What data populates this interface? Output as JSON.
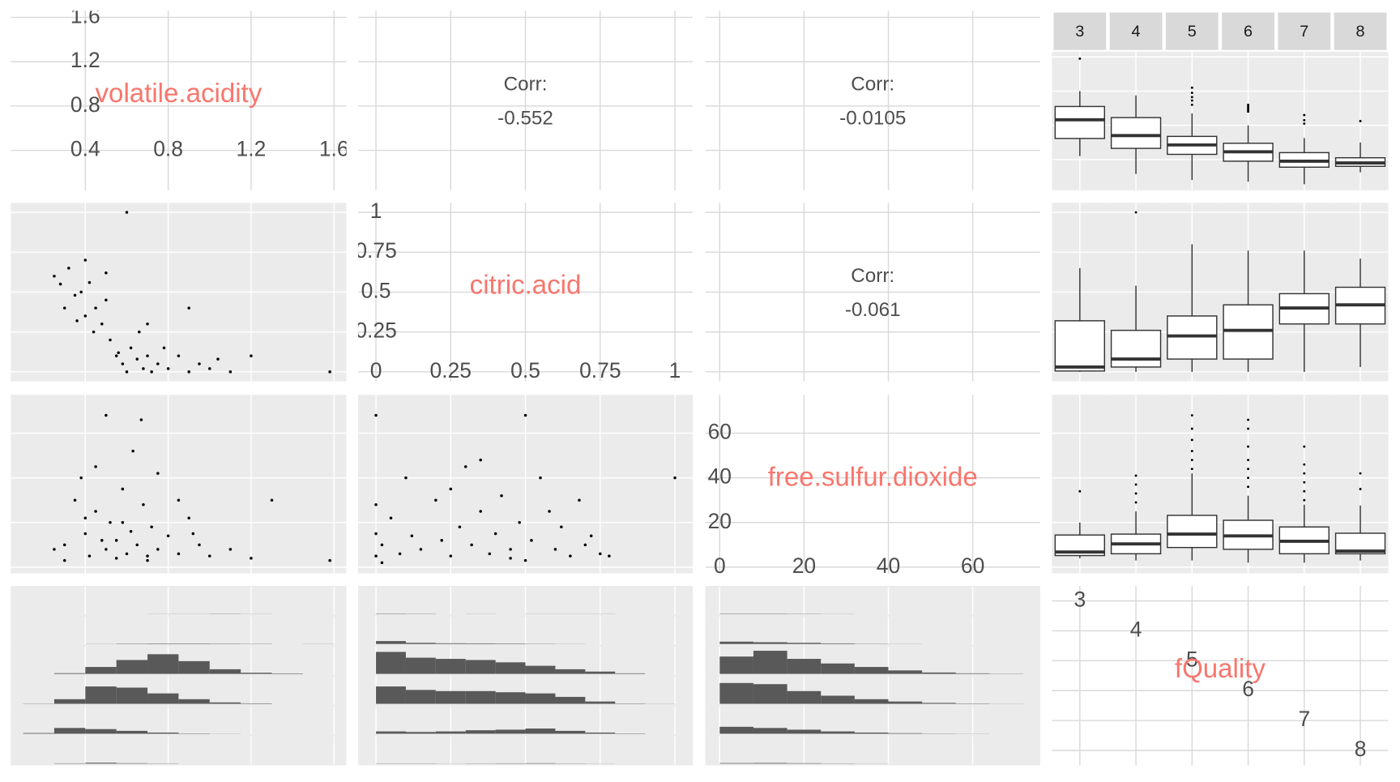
{
  "chart_data": [
    {
      "type": "label",
      "label": "volatile.acidity",
      "xlim": [
        0.04,
        1.66
      ],
      "ylim": [
        0.04,
        1.66
      ],
      "xticks": [
        0.4,
        0.8,
        1.2,
        1.6
      ],
      "yticks": [
        0.4,
        0.8,
        1.2,
        1.6
      ]
    },
    {
      "type": "corr",
      "label": "Corr:",
      "value": -0.552
    },
    {
      "type": "corr",
      "label": "Corr:",
      "value": -0.0105
    },
    {
      "type": "boxplot",
      "strip": true,
      "categories": [
        "3",
        "4",
        "5",
        "6",
        "7",
        "8"
      ],
      "low": [
        0.44,
        0.23,
        0.16,
        0.14,
        0.11,
        0.25
      ],
      "q1": [
        0.646,
        0.53,
        0.46,
        0.38,
        0.31,
        0.32
      ],
      "median": [
        0.865,
        0.68,
        0.57,
        0.49,
        0.38,
        0.36
      ],
      "q3": [
        1.02,
        0.89,
        0.67,
        0.59,
        0.48,
        0.42
      ],
      "high": [
        1.2,
        1.15,
        0.94,
        0.8,
        0.65,
        0.6
      ],
      "outliers": [
        [
          1.58
        ],
        [],
        [
          1.04,
          1.09,
          1.13,
          1.18,
          1.24
        ],
        [
          0.96,
          0.98,
          1.0,
          1.02,
          1.04
        ],
        [
          0.82,
          0.86,
          0.92
        ],
        [
          0.85
        ]
      ]
    },
    {
      "type": "scatter",
      "x": [
        0.28,
        0.3,
        0.32,
        0.35,
        0.38,
        0.4,
        0.42,
        0.45,
        0.48,
        0.5,
        0.52,
        0.55,
        0.58,
        0.6,
        0.62,
        0.65,
        0.68,
        0.7,
        0.72,
        0.75,
        0.8,
        0.85,
        0.9,
        0.95,
        1.0,
        1.1,
        1.2,
        0.6,
        0.9,
        1.58,
        0.25,
        0.36,
        0.44,
        0.5,
        0.56,
        0.66,
        0.78,
        1.04,
        0.7,
        0.4
      ],
      "y": [
        0.55,
        0.4,
        0.65,
        0.48,
        0.5,
        0.35,
        0.56,
        0.4,
        0.3,
        0.45,
        0.2,
        0.1,
        0.05,
        0.0,
        0.15,
        0.08,
        0.02,
        0.1,
        0.0,
        0.05,
        0.02,
        0.1,
        0.0,
        0.05,
        0.02,
        0.0,
        0.1,
        1.0,
        0.4,
        0.0,
        0.6,
        0.32,
        0.25,
        0.62,
        0.12,
        0.25,
        0.15,
        0.08,
        0.3,
        0.7
      ]
    },
    {
      "type": "label",
      "label": "citric.acid",
      "xlim": [
        -0.06,
        1.06
      ],
      "ylim": [
        -0.06,
        1.06
      ],
      "xticks": [
        0,
        0.25,
        0.5,
        0.75,
        1
      ],
      "yticks": [
        0,
        0.25,
        0.5,
        0.75,
        1
      ]
    },
    {
      "type": "corr",
      "label": "Corr:",
      "value": -0.061
    },
    {
      "type": "boxplot",
      "low": [
        0,
        0,
        0,
        0,
        0,
        0.03
      ],
      "q1": [
        0.005,
        0.03,
        0.08,
        0.08,
        0.3,
        0.3
      ],
      "median": [
        0.03,
        0.08,
        0.225,
        0.26,
        0.4,
        0.42
      ],
      "q3": [
        0.32,
        0.26,
        0.35,
        0.42,
        0.49,
        0.53
      ],
      "high": [
        0.65,
        0.54,
        0.8,
        0.76,
        0.76,
        0.71
      ],
      "outliers": [
        [],
        [
          1.0
        ],
        [],
        [],
        [],
        []
      ]
    },
    {
      "type": "scatter",
      "x": [
        0.3,
        0.35,
        0.4,
        0.42,
        0.45,
        0.5,
        0.52,
        0.55,
        0.58,
        0.6,
        0.62,
        0.65,
        0.68,
        0.7,
        0.72,
        0.75,
        0.8,
        0.85,
        0.9,
        0.95,
        1.0,
        1.1,
        1.2,
        1.3,
        0.5,
        0.67,
        0.45,
        0.63,
        0.38,
        0.75,
        0.3,
        0.55,
        0.85,
        1.58,
        0.48,
        0.58,
        0.7,
        0.4,
        0.92,
        0.25
      ],
      "y": [
        10,
        30,
        15,
        5,
        25,
        8,
        20,
        12,
        35,
        6,
        16,
        10,
        28,
        5,
        18,
        8,
        14,
        6,
        22,
        10,
        5,
        8,
        4,
        30,
        68,
        66,
        45,
        52,
        40,
        42,
        3,
        4,
        30,
        3,
        12,
        20,
        3,
        22,
        15,
        8
      ]
    },
    {
      "type": "scatter",
      "x": [
        0,
        0,
        0,
        0,
        0.02,
        0.05,
        0.08,
        0.1,
        0.12,
        0.15,
        0.2,
        0.22,
        0.25,
        0.28,
        0.3,
        0.32,
        0.35,
        0.38,
        0.4,
        0.42,
        0.45,
        0.48,
        0.5,
        0.5,
        0.52,
        0.55,
        0.58,
        0.6,
        0.62,
        0.65,
        0.68,
        0.7,
        0.72,
        0.75,
        0.78,
        0.02,
        0.25,
        0.35,
        1.0,
        0.45
      ],
      "y": [
        5,
        15,
        28,
        68,
        10,
        22,
        6,
        40,
        14,
        8,
        30,
        12,
        5,
        18,
        45,
        10,
        25,
        6,
        15,
        32,
        8,
        20,
        3,
        68,
        12,
        40,
        25,
        8,
        18,
        5,
        30,
        10,
        14,
        6,
        5,
        2,
        35,
        48,
        40,
        4
      ]
    },
    {
      "type": "label",
      "label": "free.sulfur.dioxide",
      "xlim": [
        -3.4,
        76
      ],
      "ylim": [
        -2.8,
        77.2
      ],
      "xticks": [
        0,
        20,
        40,
        60
      ],
      "yticks": [
        0,
        20,
        40,
        60
      ]
    },
    {
      "type": "boxplot",
      "low": [
        4,
        3,
        3,
        2,
        2,
        3
      ],
      "q1": [
        5.2,
        6,
        8.8,
        8,
        6,
        6
      ],
      "median": [
        6.8,
        10.4,
        14.8,
        14,
        11.6,
        7.2
      ],
      "q3": [
        14.4,
        14.8,
        23.2,
        21,
        18,
        15.2
      ],
      "high": [
        20,
        25,
        42,
        32,
        28,
        27.6
      ],
      "outliers": [
        [
          34
        ],
        [
          29,
          33,
          37,
          41
        ],
        [
          44,
          48,
          52,
          57,
          62,
          68
        ],
        [
          36,
          40,
          44,
          48,
          54,
          62,
          66
        ],
        [
          30,
          34,
          38,
          42,
          46,
          54
        ],
        [
          35,
          42
        ]
      ]
    },
    {
      "type": "histogram",
      "ylim": [
        0,
        220
      ],
      "bins": [
        0.1,
        0.25,
        0.4,
        0.55,
        0.7,
        0.85,
        1.0,
        1.15,
        1.3,
        1.45,
        1.6
      ],
      "series": [
        {
          "values": [
            0,
            0,
            0,
            0,
            1,
            1,
            2,
            1,
            0,
            0
          ]
        },
        {
          "values": [
            0,
            0,
            1,
            3,
            4,
            4,
            3,
            2,
            0,
            1
          ]
        },
        {
          "values": [
            0,
            6,
            60,
            120,
            170,
            110,
            40,
            10,
            4,
            0
          ]
        },
        {
          "values": [
            2,
            40,
            150,
            140,
            90,
            40,
            12,
            4,
            0,
            0
          ]
        },
        {
          "values": [
            6,
            50,
            40,
            25,
            10,
            3,
            1,
            0,
            0,
            0
          ]
        },
        {
          "values": [
            0,
            3,
            8,
            4,
            2,
            0,
            0,
            0,
            0,
            0
          ]
        }
      ]
    },
    {
      "type": "histogram",
      "ylim": [
        0,
        220
      ],
      "bins": [
        0,
        0.1,
        0.2,
        0.3,
        0.4,
        0.5,
        0.6,
        0.7,
        0.8,
        0.9,
        1.0
      ],
      "series": [
        {
          "values": [
            3,
            2,
            0,
            1,
            0,
            1,
            1,
            1,
            0,
            0
          ]
        },
        {
          "values": [
            25,
            10,
            6,
            5,
            4,
            2,
            1,
            0,
            0,
            0
          ]
        },
        {
          "values": [
            190,
            140,
            130,
            120,
            100,
            70,
            40,
            20,
            5,
            0
          ]
        },
        {
          "values": [
            150,
            120,
            110,
            110,
            100,
            90,
            60,
            20,
            3,
            1
          ]
        },
        {
          "values": [
            20,
            15,
            20,
            30,
            35,
            45,
            25,
            10,
            3,
            0
          ]
        },
        {
          "values": [
            2,
            2,
            1,
            2,
            3,
            4,
            2,
            1,
            0,
            0
          ]
        }
      ]
    },
    {
      "type": "histogram",
      "ylim": [
        0,
        220
      ],
      "bins": [
        0,
        8,
        16,
        24,
        32,
        40,
        48,
        56,
        64,
        72
      ],
      "series": [
        {
          "values": [
            3,
            3,
            2,
            1,
            0,
            0,
            0,
            0,
            0
          ]
        },
        {
          "values": [
            20,
            15,
            10,
            5,
            2,
            1,
            0,
            0,
            0
          ]
        },
        {
          "values": [
            150,
            200,
            130,
            90,
            60,
            30,
            12,
            5,
            2
          ]
        },
        {
          "values": [
            180,
            170,
            110,
            70,
            40,
            20,
            8,
            3,
            1
          ]
        },
        {
          "values": [
            60,
            50,
            35,
            20,
            10,
            5,
            2,
            1,
            0
          ]
        },
        {
          "values": [
            5,
            6,
            4,
            2,
            1,
            0,
            0,
            0,
            0
          ]
        }
      ]
    },
    {
      "type": "label",
      "label": "fQuality",
      "categories": [
        "3",
        "4",
        "5",
        "6",
        "7",
        "8"
      ]
    }
  ]
}
